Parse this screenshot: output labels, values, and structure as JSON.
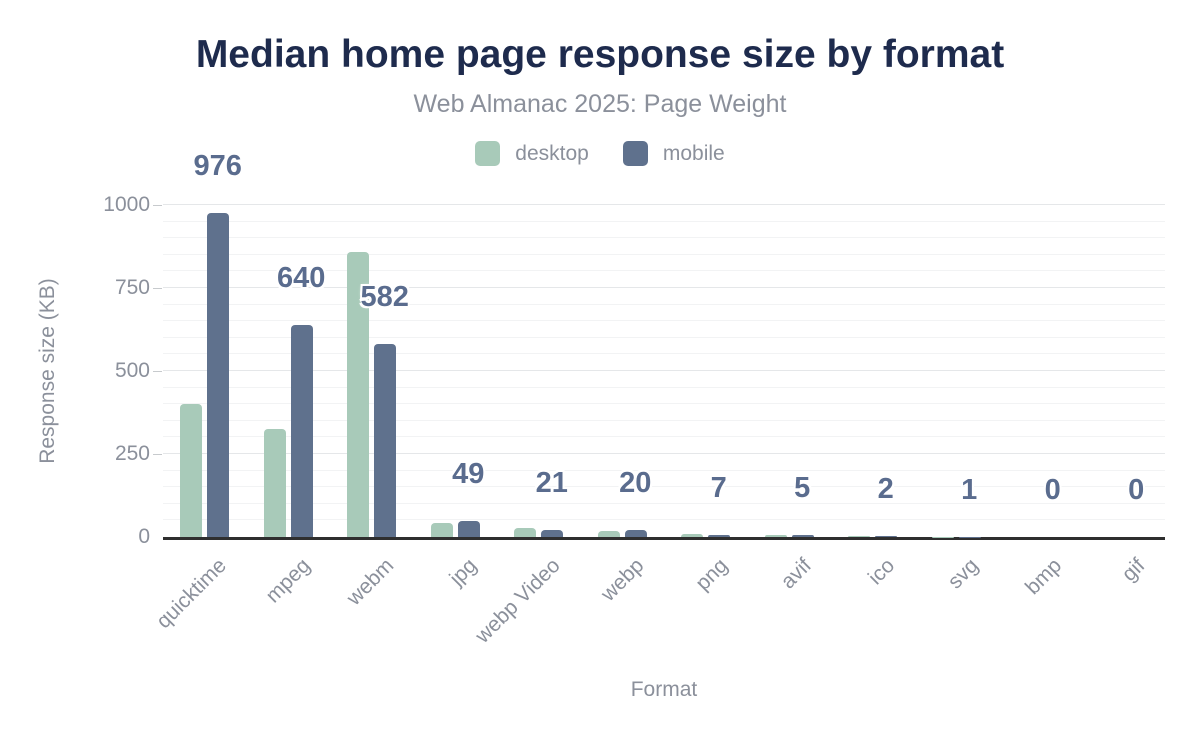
{
  "chart_data": {
    "type": "bar",
    "title": "Median home page response size by format",
    "subtitle": "Web Almanac 2025: Page Weight",
    "xlabel": "Format",
    "ylabel": "Response size (KB)",
    "categories": [
      "quicktime",
      "mpeg",
      "webm",
      "jpg",
      "webp Video",
      "webp",
      "png",
      "avif",
      "ico",
      "svg",
      "bmp",
      "gif"
    ],
    "series": [
      {
        "name": "desktop",
        "color": "#a8cab9",
        "values": [
          400,
          326,
          858,
          43,
          27,
          18,
          8,
          6,
          2,
          1,
          0,
          0
        ]
      },
      {
        "name": "mobile",
        "color": "#5f718d",
        "values": [
          976,
          640,
          582,
          49,
          21,
          20,
          7,
          5,
          2,
          1,
          0,
          0
        ]
      }
    ],
    "data_labels": [
      "976",
      "640",
      "582",
      "49",
      "21",
      "20",
      "7",
      "5",
      "2",
      "1",
      "0",
      "0"
    ],
    "data_label_series": "mobile",
    "yticks": [
      0,
      250,
      500,
      750,
      1000
    ],
    "ylim": [
      0,
      1000
    ],
    "grid": "horizontal minor every 50 KB, major every 250 KB",
    "legend_position": "top-center"
  },
  "colors": {
    "background": "#ffffff",
    "title_text": "#1e2b4d",
    "muted_text": "#8b909b",
    "data_label_text": "#5a6c8e",
    "axis_line": "#2f2f2f",
    "gridline_minor": "#f2f3f4",
    "gridline_major": "#e5e7e9",
    "desktop_bar": "#a8cab9",
    "mobile_bar": "#5f718d"
  }
}
